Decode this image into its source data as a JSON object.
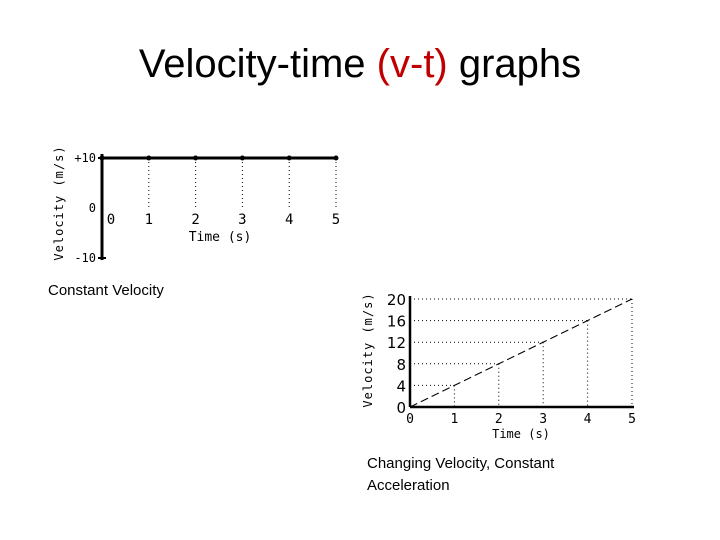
{
  "title": {
    "prefix": "Velocity-time ",
    "highlight": "(v-t)",
    "suffix": " graphs",
    "highlight_color": "#c00000"
  },
  "caption1": "Constant Velocity",
  "caption2": "Changing Velocity, Constant Acceleration",
  "chart_data": [
    {
      "type": "line",
      "title": "",
      "xlabel": "Time (s)",
      "ylabel": "Velocity (m/s)",
      "x_ticks": [
        "0",
        "1",
        "2",
        "3",
        "4",
        "5"
      ],
      "y_ticks": [
        "+10",
        "0",
        "-10"
      ],
      "xlim": [
        0,
        5
      ],
      "ylim": [
        -10,
        10
      ],
      "series": [
        {
          "x": [
            0,
            1,
            2,
            3,
            4,
            5
          ],
          "y": [
            10,
            10,
            10,
            10,
            10,
            10
          ]
        }
      ]
    },
    {
      "type": "line",
      "title": "",
      "xlabel": "Time (s)",
      "ylabel": "Velocity (m/s)",
      "x_ticks": [
        "0",
        "1",
        "2",
        "3",
        "4",
        "5"
      ],
      "y_ticks": [
        "20",
        "16",
        "12",
        "8",
        "4",
        "0"
      ],
      "xlim": [
        0,
        5
      ],
      "ylim": [
        0,
        20
      ],
      "series": [
        {
          "x": [
            0,
            1,
            2,
            3,
            4,
            5
          ],
          "y": [
            0,
            4,
            8,
            12,
            16,
            20
          ]
        }
      ]
    }
  ]
}
